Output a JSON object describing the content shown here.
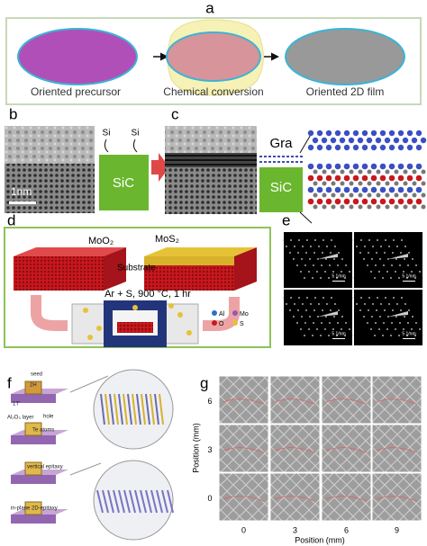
{
  "panels": {
    "a": {
      "label": "a",
      "captions": [
        "Oriented precursor",
        "Chemical conversion",
        "Oriented 2D film"
      ]
    },
    "b": {
      "label": "b",
      "si_labels": [
        "Si",
        "Si"
      ],
      "substrate": "SiC",
      "scale_bar": "1nm"
    },
    "c": {
      "label": "c",
      "layers": [
        "Gra",
        "SiC"
      ]
    },
    "d": {
      "label": "d",
      "precursor": "MoO₂",
      "product": "MoS₂",
      "substrate": "Substrate",
      "condition": "Ar + S, 900 °C, 1 hr",
      "legend": [
        "Al",
        "Mo",
        "O",
        "S"
      ]
    },
    "e": {
      "label": "e",
      "scale_bars": [
        "5 1/nm",
        "5 1/nm",
        "5 1/nm",
        "5 1/nm"
      ]
    },
    "f": {
      "label": "f",
      "texts": [
        "seed",
        "2H",
        "1T'",
        "Al₂O₃ layer",
        "hole",
        "Te atoms",
        "vertical epitaxy",
        "in-plane 2D-epitaxy"
      ]
    },
    "g": {
      "label": "g",
      "y_label": "Position (mm)",
      "x_label": "Position (mm)",
      "yticks": [
        6,
        3,
        0
      ],
      "xticks": [
        0,
        3,
        6,
        9
      ]
    }
  }
}
